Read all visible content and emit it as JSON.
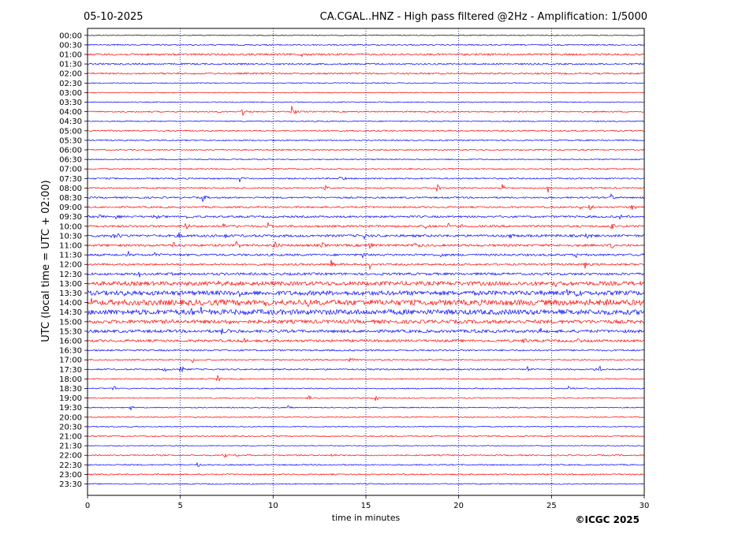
{
  "header": {
    "date": "05-10-2025",
    "title": "CA.CGAL..HNZ - High pass filtered @2Hz - Amplification: 1/5000"
  },
  "copyright": "©ICGC 2025",
  "colors": {
    "red": "#ff0000",
    "blue": "#0000ff",
    "grid": "#000080"
  },
  "chart_data": {
    "type": "line",
    "title": "CA.CGAL..HNZ - High pass filtered @2Hz - Amplification: 1/5000",
    "xlabel": "time in minutes",
    "ylabel": "UTC (local time = UTC + 02:00)",
    "xlim": [
      0,
      30
    ],
    "xticks": [
      "0",
      "5",
      "10",
      "15",
      "20",
      "25",
      "30"
    ],
    "vertical_gridlines_at": [
      5,
      10,
      15,
      20,
      25
    ],
    "row_labels": [
      "00:00",
      "00:30",
      "01:00",
      "01:30",
      "02:00",
      "02:30",
      "03:00",
      "03:30",
      "04:00",
      "04:30",
      "05:00",
      "05:30",
      "06:00",
      "06:30",
      "07:00",
      "07:30",
      "08:00",
      "08:30",
      "09:00",
      "09:30",
      "10:00",
      "10:30",
      "11:00",
      "11:30",
      "12:00",
      "12:30",
      "13:00",
      "13:30",
      "14:00",
      "14:30",
      "15:00",
      "15:30",
      "16:00",
      "16:30",
      "17:00",
      "17:30",
      "18:00",
      "18:30",
      "19:00",
      "19:30",
      "20:00",
      "20:30",
      "21:00",
      "21:30",
      "22:00",
      "22:30",
      "23:00",
      "23:30"
    ],
    "row_colors": [
      "black",
      "blue",
      "red",
      "blue",
      "red",
      "blue",
      "red",
      "blue",
      "red",
      "blue",
      "red",
      "blue",
      "red",
      "blue",
      "red",
      "blue",
      "red",
      "blue",
      "red",
      "blue",
      "red",
      "blue",
      "red",
      "blue",
      "red",
      "blue",
      "red",
      "blue",
      "red",
      "blue",
      "red",
      "blue",
      "red",
      "blue",
      "red",
      "blue",
      "red",
      "blue",
      "red",
      "blue",
      "red",
      "blue",
      "red",
      "blue",
      "red",
      "blue",
      "red",
      "blue"
    ],
    "noise_level": [
      0.5,
      0.8,
      1.2,
      1.0,
      1.0,
      0.6,
      0.5,
      0.6,
      0.8,
      0.7,
      0.8,
      0.8,
      0.8,
      0.7,
      0.8,
      0.9,
      0.9,
      1.0,
      1.0,
      1.2,
      1.3,
      1.5,
      1.4,
      1.3,
      1.2,
      1.5,
      2.5,
      2.8,
      3.5,
      3.2,
      2.2,
      1.8,
      1.5,
      1.0,
      0.8,
      0.9,
      0.7,
      0.7,
      0.7,
      0.6,
      0.6,
      0.6,
      0.7,
      0.5,
      0.8,
      0.8,
      0.8,
      0.7
    ],
    "events": [
      {
        "row": 2,
        "minute": 11.4,
        "amp": 7
      },
      {
        "row": 8,
        "minute": 8.3,
        "amp": 8
      },
      {
        "row": 8,
        "minute": 11.0,
        "amp": 8
      },
      {
        "row": 15,
        "minute": 8.2,
        "amp": 4
      },
      {
        "row": 15,
        "minute": 13.6,
        "amp": 5
      },
      {
        "row": 16,
        "minute": 12.8,
        "amp": 5
      },
      {
        "row": 16,
        "minute": 18.8,
        "amp": 7
      },
      {
        "row": 16,
        "minute": 22.3,
        "amp": 6
      },
      {
        "row": 16,
        "minute": 24.8,
        "amp": 7
      },
      {
        "row": 17,
        "minute": 6.2,
        "amp": 5
      },
      {
        "row": 17,
        "minute": 28.2,
        "amp": 5
      },
      {
        "row": 18,
        "minute": 26.6,
        "amp": 5
      },
      {
        "row": 18,
        "minute": 27.0,
        "amp": 5
      },
      {
        "row": 18,
        "minute": 29.3,
        "amp": 6
      },
      {
        "row": 19,
        "minute": 0.6,
        "amp": 5
      },
      {
        "row": 19,
        "minute": 1.5,
        "amp": 3
      },
      {
        "row": 19,
        "minute": 3.6,
        "amp": 5
      },
      {
        "row": 19,
        "minute": 5.4,
        "amp": 5
      },
      {
        "row": 19,
        "minute": 26.4,
        "amp": 4
      },
      {
        "row": 19,
        "minute": 28.6,
        "amp": 5
      },
      {
        "row": 19,
        "minute": 30.0,
        "amp": 6
      },
      {
        "row": 20,
        "minute": 5.3,
        "amp": 6
      },
      {
        "row": 20,
        "minute": 7.3,
        "amp": 5
      },
      {
        "row": 20,
        "minute": 8.0,
        "amp": 4
      },
      {
        "row": 20,
        "minute": 9.7,
        "amp": 6
      },
      {
        "row": 20,
        "minute": 18.2,
        "amp": 4
      },
      {
        "row": 20,
        "minute": 19.4,
        "amp": 6
      },
      {
        "row": 20,
        "minute": 20.0,
        "amp": 5
      },
      {
        "row": 20,
        "minute": 28.2,
        "amp": 6
      },
      {
        "row": 21,
        "minute": 1.3,
        "amp": 6
      },
      {
        "row": 21,
        "minute": 1.6,
        "amp": 5
      },
      {
        "row": 21,
        "minute": 4.9,
        "amp": 4
      },
      {
        "row": 21,
        "minute": 7.4,
        "amp": 5
      },
      {
        "row": 21,
        "minute": 14.9,
        "amp": 4
      },
      {
        "row": 21,
        "minute": 22.7,
        "amp": 5
      },
      {
        "row": 21,
        "minute": 26.9,
        "amp": 5
      },
      {
        "row": 22,
        "minute": 4.6,
        "amp": 6
      },
      {
        "row": 22,
        "minute": 8.0,
        "amp": 6
      },
      {
        "row": 22,
        "minute": 10.1,
        "amp": 6
      },
      {
        "row": 22,
        "minute": 12.6,
        "amp": 4
      },
      {
        "row": 22,
        "minute": 15.2,
        "amp": 7
      },
      {
        "row": 22,
        "minute": 17.6,
        "amp": 8
      },
      {
        "row": 22,
        "minute": 28.2,
        "amp": 7
      },
      {
        "row": 23,
        "minute": 2.2,
        "amp": 5
      },
      {
        "row": 23,
        "minute": 3.6,
        "amp": 5
      },
      {
        "row": 23,
        "minute": 14.8,
        "amp": 5
      },
      {
        "row": 23,
        "minute": 19.0,
        "amp": 4
      },
      {
        "row": 23,
        "minute": 26.3,
        "amp": 4
      },
      {
        "row": 24,
        "minute": 13.1,
        "amp": 8
      },
      {
        "row": 24,
        "minute": 15.2,
        "amp": 6
      },
      {
        "row": 24,
        "minute": 26.8,
        "amp": 5
      },
      {
        "row": 25,
        "minute": 2.7,
        "amp": 7
      },
      {
        "row": 25,
        "minute": 4.3,
        "amp": 5
      },
      {
        "row": 26,
        "minute": 7.0,
        "amp": 4
      },
      {
        "row": 26,
        "minute": 25.2,
        "amp": 5
      },
      {
        "row": 27,
        "minute": 2.0,
        "amp": 6
      },
      {
        "row": 27,
        "minute": 8.2,
        "amp": 5
      },
      {
        "row": 27,
        "minute": 25.8,
        "amp": 7
      },
      {
        "row": 27,
        "minute": 26.3,
        "amp": 7
      },
      {
        "row": 28,
        "minute": 0.1,
        "amp": 6
      },
      {
        "row": 28,
        "minute": 9.6,
        "amp": 5
      },
      {
        "row": 28,
        "minute": 11.8,
        "amp": 5
      },
      {
        "row": 28,
        "minute": 17.9,
        "amp": 6
      },
      {
        "row": 28,
        "minute": 27.0,
        "amp": 5
      },
      {
        "row": 28,
        "minute": 27.9,
        "amp": 6
      },
      {
        "row": 29,
        "minute": 5.6,
        "amp": 7
      },
      {
        "row": 29,
        "minute": 6.1,
        "amp": 6
      },
      {
        "row": 29,
        "minute": 8.4,
        "amp": 5
      },
      {
        "row": 29,
        "minute": 12.7,
        "amp": 4
      },
      {
        "row": 29,
        "minute": 25.0,
        "amp": 4
      },
      {
        "row": 30,
        "minute": 4.4,
        "amp": 5
      },
      {
        "row": 30,
        "minute": 7.4,
        "amp": 5
      },
      {
        "row": 31,
        "minute": 7.2,
        "amp": 6
      },
      {
        "row": 31,
        "minute": 7.6,
        "amp": 6
      },
      {
        "row": 31,
        "minute": 20.8,
        "amp": 5
      },
      {
        "row": 31,
        "minute": 24.3,
        "amp": 6
      },
      {
        "row": 32,
        "minute": 8.3,
        "amp": 6
      },
      {
        "row": 32,
        "minute": 23.5,
        "amp": 6
      },
      {
        "row": 32,
        "minute": 26.4,
        "amp": 7
      },
      {
        "row": 34,
        "minute": 5.6,
        "amp": 6
      },
      {
        "row": 34,
        "minute": 14.1,
        "amp": 4
      },
      {
        "row": 35,
        "minute": 4.1,
        "amp": 4
      },
      {
        "row": 35,
        "minute": 5.0,
        "amp": 6
      },
      {
        "row": 35,
        "minute": 23.7,
        "amp": 4
      },
      {
        "row": 35,
        "minute": 27.3,
        "amp": 5
      },
      {
        "row": 35,
        "minute": 27.6,
        "amp": 5
      },
      {
        "row": 36,
        "minute": 7.0,
        "amp": 5
      },
      {
        "row": 37,
        "minute": 1.4,
        "amp": 5
      },
      {
        "row": 37,
        "minute": 25.9,
        "amp": 5
      },
      {
        "row": 38,
        "minute": 11.9,
        "amp": 4
      },
      {
        "row": 38,
        "minute": 15.5,
        "amp": 5
      },
      {
        "row": 39,
        "minute": 2.3,
        "amp": 4
      },
      {
        "row": 39,
        "minute": 10.7,
        "amp": 4
      },
      {
        "row": 42,
        "minute": 23.5,
        "amp": 3
      },
      {
        "row": 44,
        "minute": 7.3,
        "amp": 5
      },
      {
        "row": 44,
        "minute": 7.9,
        "amp": 3
      },
      {
        "row": 44,
        "minute": 13.1,
        "amp": 3
      },
      {
        "row": 45,
        "minute": 5.9,
        "amp": 4
      }
    ]
  }
}
